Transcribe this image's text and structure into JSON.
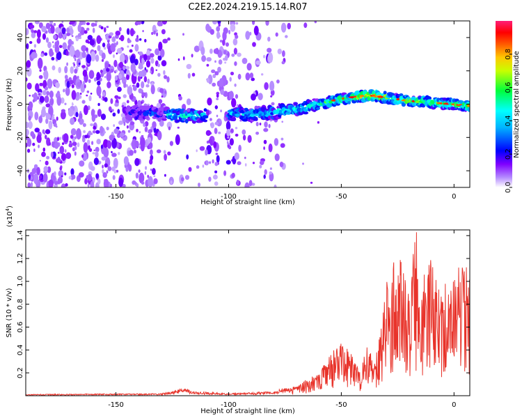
{
  "chart_data": [
    {
      "type": "heatmap",
      "title": "C2E2.2024.219.15.14.R07",
      "xlabel": "Height of straight line (km)",
      "ylabel": "Frequency (Hz)",
      "xlim": [
        -190,
        7
      ],
      "ylim": [
        -50,
        50
      ],
      "xticks": [
        -150,
        -100,
        -50,
        0
      ],
      "xtick_labels": [
        "-150",
        "-100",
        "-50",
        "0"
      ],
      "yticks": [
        -40,
        -20,
        0,
        20,
        40
      ],
      "ytick_labels": [
        "-40",
        "-20",
        "0",
        "20",
        "40"
      ],
      "colorbar": {
        "label": "Normalized spectral amplitude",
        "range": [
          0,
          1
        ],
        "ticks": [
          0.0,
          0.2,
          0.4,
          0.6,
          0.8
        ],
        "tick_labels": [
          "0.0",
          "0.2",
          "0.4",
          "0.6",
          "0.8"
        ],
        "colormap": [
          "#ffffff",
          "#7f00ff",
          "#0000ff",
          "#00ffff",
          "#00ff00",
          "#ffff00",
          "#ff7f00",
          "#ff0000",
          "#ff1493"
        ]
      },
      "ridge": {
        "description_units": "height km vs frequency Hz",
        "x": [
          -140,
          -130,
          -120,
          -110,
          -100,
          -90,
          -80,
          -70,
          -60,
          -50,
          -40,
          -35,
          -30,
          -20,
          -10,
          0,
          6
        ],
        "y": [
          -5,
          -6,
          -7,
          -7,
          -6,
          -6,
          -5,
          -3,
          0,
          3,
          5,
          5,
          4,
          2,
          1,
          0,
          -1
        ]
      },
      "grid": false
    },
    {
      "type": "line",
      "xlabel": "Height of straight line (km)",
      "ylabel": "SNR (10 * v/v)",
      "multiplier_label": "(x10",
      "multiplier_exp": "4",
      "multiplier_close": ")",
      "xlim": [
        -190,
        7
      ],
      "ylim": [
        0,
        1.45
      ],
      "xticks": [
        -150,
        -100,
        -50,
        0
      ],
      "xtick_labels": [
        "-150",
        "-100",
        "-50",
        "0"
      ],
      "yticks": [
        0.2,
        0.4,
        0.6,
        0.8,
        1.0,
        1.2,
        1.4
      ],
      "ytick_labels": [
        "0.2",
        "0.4",
        "0.6",
        "0.8",
        "1.0",
        "1.2",
        "1.4"
      ],
      "series_color": "#e8332a",
      "envelope": {
        "x": [
          -190,
          -130,
          -120,
          -115,
          -100,
          -80,
          -70,
          -60,
          -55,
          -50,
          -45,
          -42,
          -38,
          -35,
          -32,
          -30,
          -25,
          -20,
          -17,
          -15,
          -10,
          -5,
          0,
          5,
          7
        ],
        "y": [
          0.01,
          0.015,
          0.05,
          0.03,
          0.015,
          0.03,
          0.08,
          0.2,
          0.35,
          0.45,
          0.35,
          0.2,
          0.45,
          0.3,
          0.7,
          0.95,
          1.25,
          0.95,
          1.45,
          1.1,
          1.15,
          0.9,
          1.05,
          1.1,
          1.0
        ]
      },
      "grid": false
    }
  ]
}
